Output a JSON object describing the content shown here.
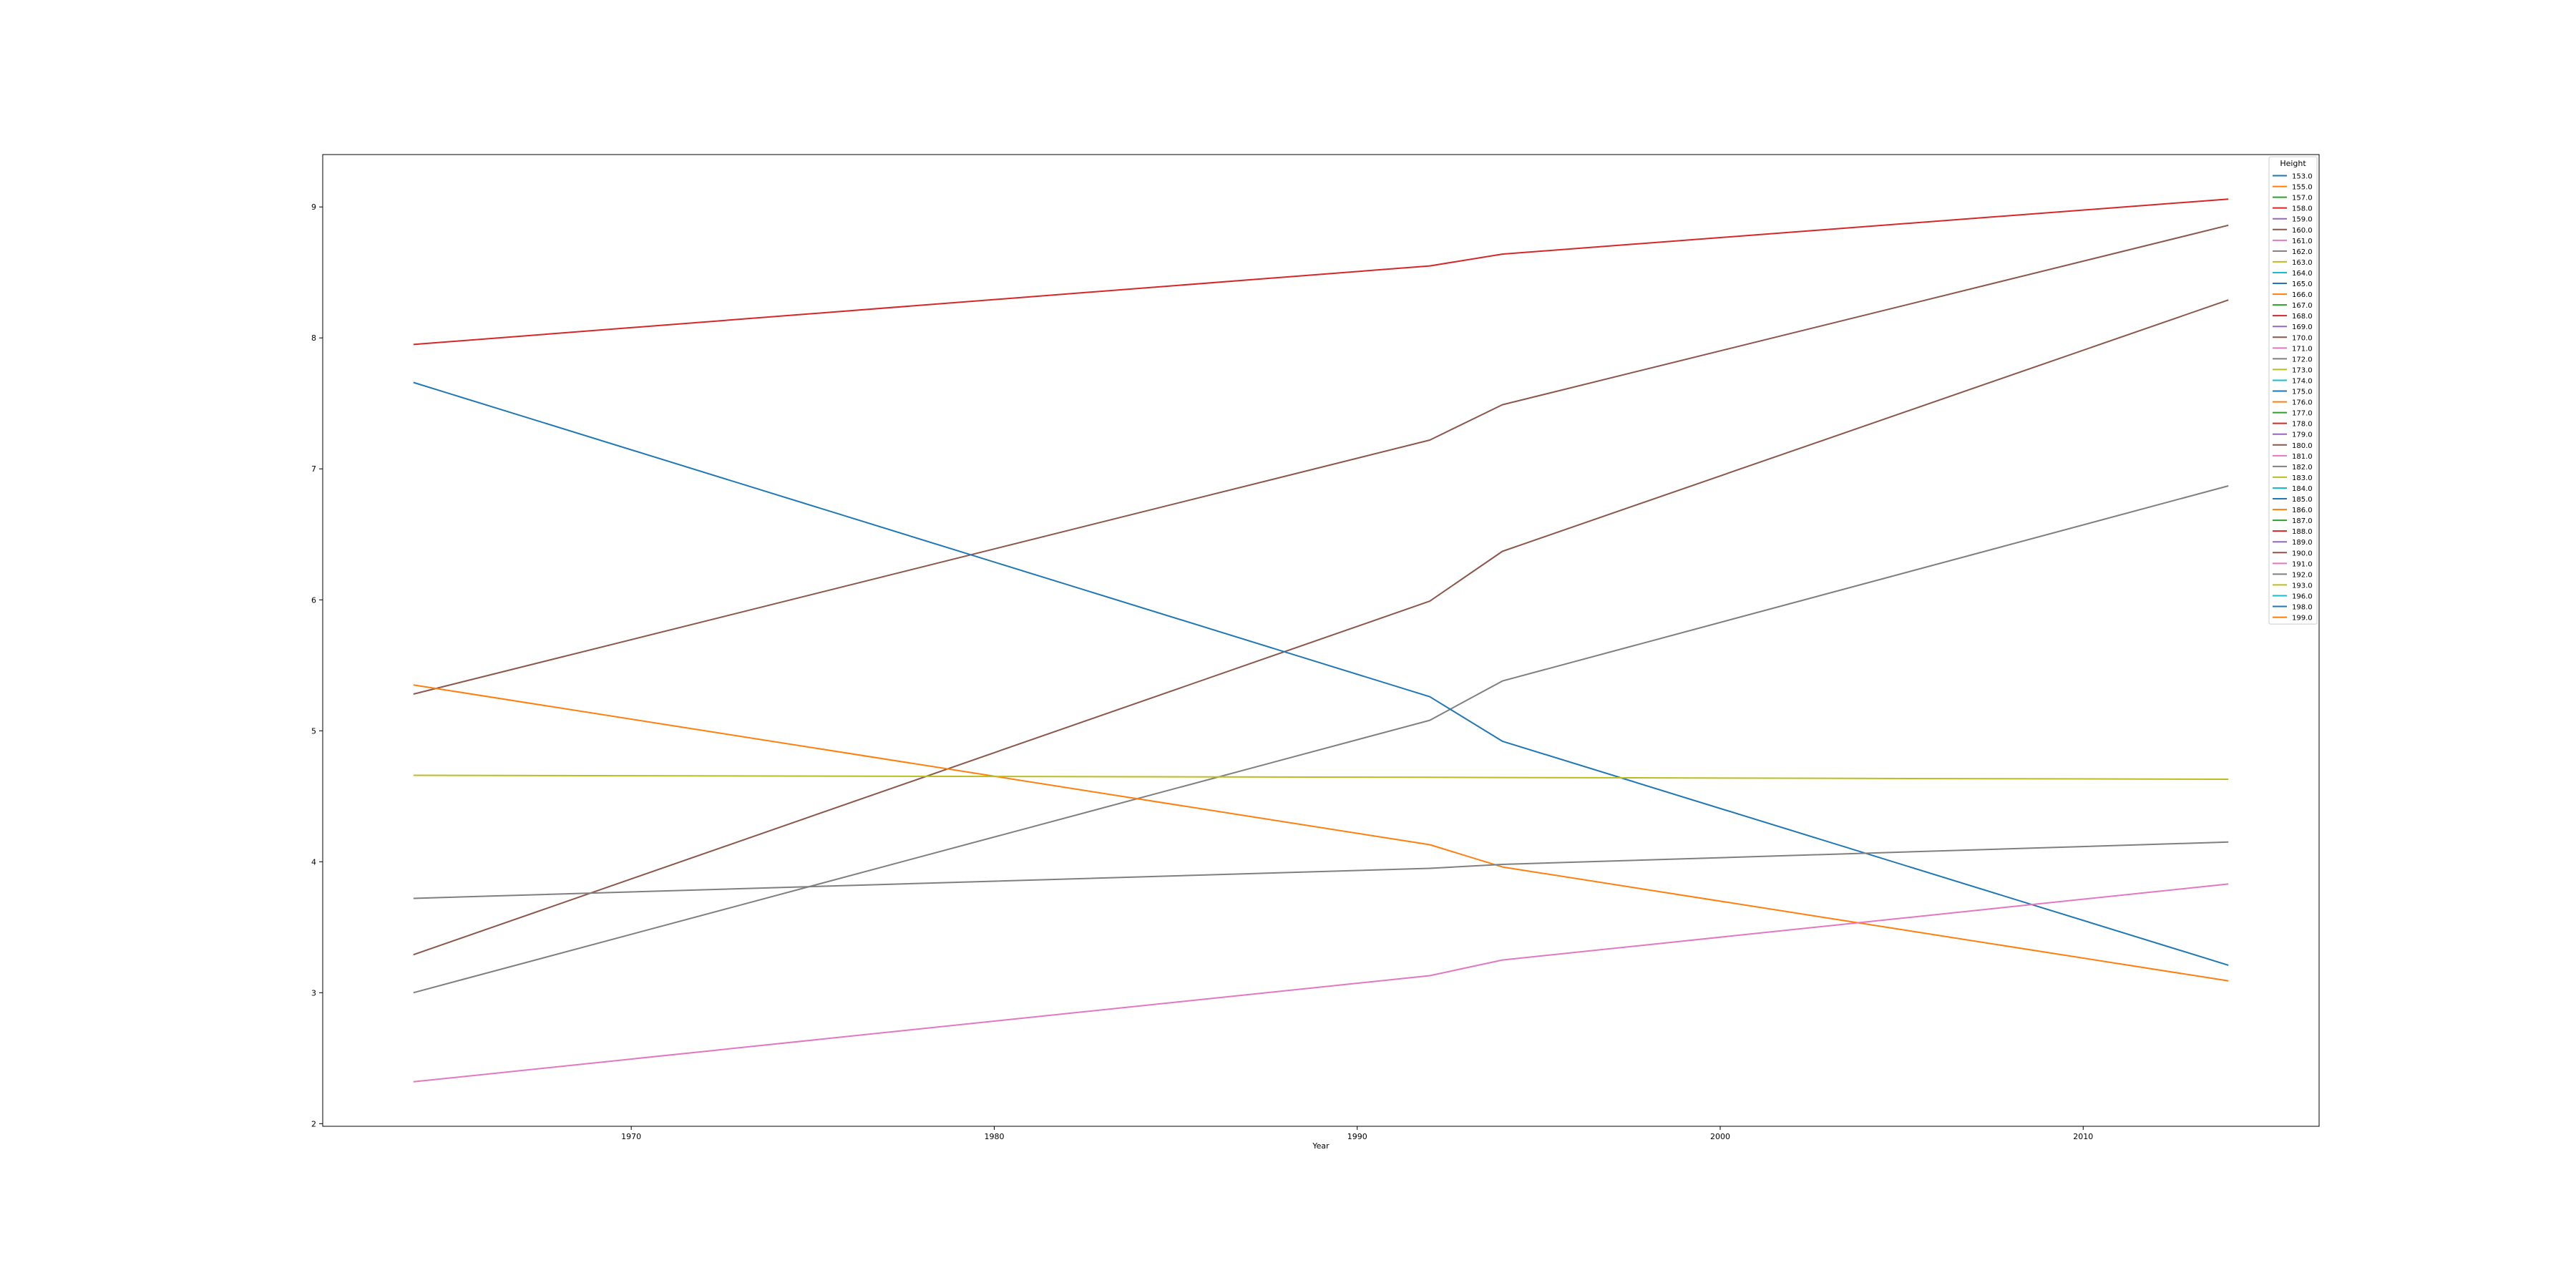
{
  "chart_data": {
    "type": "line",
    "xlabel": "Year",
    "ylabel": "",
    "xlim": [
      1961.5,
      2016.5
    ],
    "ylim": [
      1.98,
      9.4
    ],
    "x_ticks": [
      1970,
      1980,
      1990,
      2000,
      2010
    ],
    "y_ticks": [
      2,
      3,
      4,
      5,
      6,
      7,
      8,
      9
    ],
    "legend": {
      "title": "Height",
      "position": "top-right",
      "entries": [
        {
          "label": "153.0",
          "color": "#1f77b4"
        },
        {
          "label": "155.0",
          "color": "#ff7f0e"
        },
        {
          "label": "157.0",
          "color": "#2ca02c"
        },
        {
          "label": "158.0",
          "color": "#d62728"
        },
        {
          "label": "159.0",
          "color": "#9467bd"
        },
        {
          "label": "160.0",
          "color": "#8c564b"
        },
        {
          "label": "161.0",
          "color": "#e377c2"
        },
        {
          "label": "162.0",
          "color": "#7f7f7f"
        },
        {
          "label": "163.0",
          "color": "#bcbd22"
        },
        {
          "label": "164.0",
          "color": "#17becf"
        },
        {
          "label": "165.0",
          "color": "#1f77b4"
        },
        {
          "label": "166.0",
          "color": "#ff7f0e"
        },
        {
          "label": "167.0",
          "color": "#2ca02c"
        },
        {
          "label": "168.0",
          "color": "#d62728"
        },
        {
          "label": "169.0",
          "color": "#9467bd"
        },
        {
          "label": "170.0",
          "color": "#8c564b"
        },
        {
          "label": "171.0",
          "color": "#e377c2"
        },
        {
          "label": "172.0",
          "color": "#7f7f7f"
        },
        {
          "label": "173.0",
          "color": "#bcbd22"
        },
        {
          "label": "174.0",
          "color": "#17becf"
        },
        {
          "label": "175.0",
          "color": "#1f77b4"
        },
        {
          "label": "176.0",
          "color": "#ff7f0e"
        },
        {
          "label": "177.0",
          "color": "#2ca02c"
        },
        {
          "label": "178.0",
          "color": "#d62728"
        },
        {
          "label": "179.0",
          "color": "#9467bd"
        },
        {
          "label": "180.0",
          "color": "#8c564b"
        },
        {
          "label": "181.0",
          "color": "#e377c2"
        },
        {
          "label": "182.0",
          "color": "#7f7f7f"
        },
        {
          "label": "183.0",
          "color": "#bcbd22"
        },
        {
          "label": "184.0",
          "color": "#17becf"
        },
        {
          "label": "185.0",
          "color": "#1f77b4"
        },
        {
          "label": "186.0",
          "color": "#ff7f0e"
        },
        {
          "label": "187.0",
          "color": "#2ca02c"
        },
        {
          "label": "188.0",
          "color": "#d62728"
        },
        {
          "label": "189.0",
          "color": "#9467bd"
        },
        {
          "label": "190.0",
          "color": "#8c564b"
        },
        {
          "label": "191.0",
          "color": "#e377c2"
        },
        {
          "label": "192.0",
          "color": "#7f7f7f"
        },
        {
          "label": "193.0",
          "color": "#bcbd22"
        },
        {
          "label": "196.0",
          "color": "#17becf"
        },
        {
          "label": "198.0",
          "color": "#1f77b4"
        },
        {
          "label": "199.0",
          "color": "#ff7f0e"
        }
      ]
    },
    "series": [
      {
        "name": "178.0",
        "color": "#d62728",
        "x": [
          1964,
          1992,
          1994,
          2014
        ],
        "y": [
          7.95,
          8.55,
          8.64,
          9.06
        ]
      },
      {
        "name": "180.0",
        "color": "#8c564b",
        "x": [
          1964,
          1992,
          1994,
          2014
        ],
        "y": [
          5.28,
          7.22,
          7.49,
          8.86
        ]
      },
      {
        "name": "190.0",
        "color": "#8c564b",
        "x": [
          1964,
          1992,
          1994,
          2014
        ],
        "y": [
          3.29,
          5.99,
          6.37,
          8.29
        ]
      },
      {
        "name": "192.0",
        "color": "#7f7f7f",
        "x": [
          1964,
          1992,
          1994,
          2014
        ],
        "y": [
          3.0,
          5.08,
          5.38,
          6.87
        ]
      },
      {
        "name": "185.0",
        "color": "#1f77b4",
        "x": [
          1964,
          1992,
          1994,
          2014
        ],
        "y": [
          7.66,
          5.26,
          4.92,
          3.21
        ]
      },
      {
        "name": "176.0",
        "color": "#ff7f0e",
        "x": [
          1964,
          1992,
          1994,
          2014
        ],
        "y": [
          5.35,
          4.13,
          3.96,
          3.09
        ]
      },
      {
        "name": "193.0",
        "color": "#bcbd22",
        "x": [
          1964,
          1992,
          1994,
          2014
        ],
        "y": [
          4.66,
          4.645,
          4.643,
          4.63
        ]
      },
      {
        "name": "182.0",
        "color": "#7f7f7f",
        "x": [
          1964,
          1992,
          1994,
          2014
        ],
        "y": [
          3.72,
          3.95,
          3.98,
          4.15
        ]
      },
      {
        "name": "181.0",
        "color": "#e377c2",
        "x": [
          1964,
          1992,
          1994,
          2014
        ],
        "y": [
          2.32,
          3.13,
          3.25,
          3.83
        ]
      }
    ]
  }
}
